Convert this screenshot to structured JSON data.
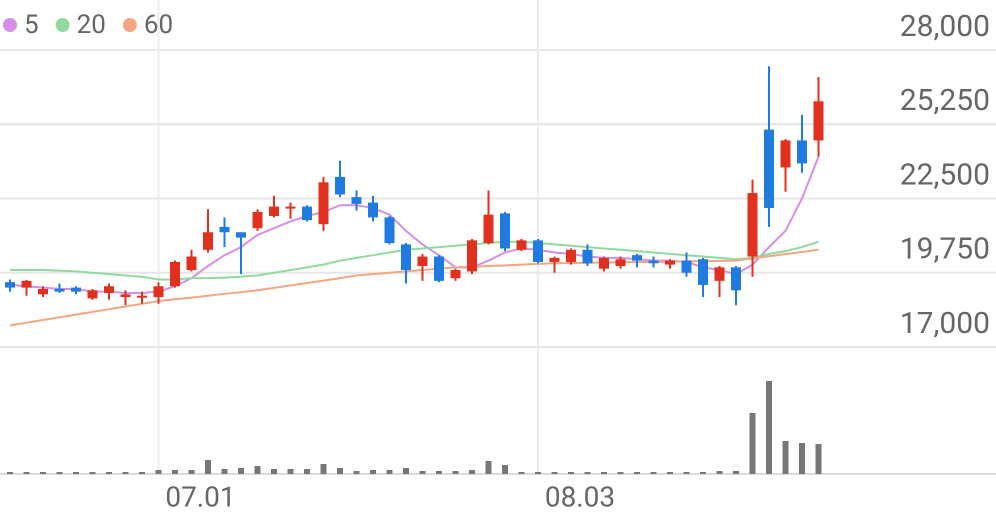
{
  "chart_data": {
    "type": "candlestick",
    "categories": [
      null,
      null,
      null,
      null,
      null,
      null,
      null,
      null,
      null,
      "07.01",
      null,
      null,
      null,
      null,
      null,
      null,
      null,
      null,
      null,
      null,
      null,
      null,
      null,
      null,
      null,
      null,
      null,
      null,
      null,
      null,
      null,
      null,
      "08.03",
      null,
      null,
      null,
      null,
      null,
      null,
      null,
      null,
      null,
      null,
      null,
      null,
      null,
      null,
      null,
      null,
      null
    ],
    "open": [
      19400,
      19200,
      18950,
      19150,
      19200,
      18800,
      19000,
      18850,
      18850,
      18850,
      19250,
      19850,
      20600,
      21450,
      21250,
      21400,
      21850,
      22150,
      22200,
      21550,
      23300,
      22550,
      22350,
      21800,
      20800,
      20000,
      20350,
      19550,
      19800,
      20850,
      21950,
      20600,
      20950,
      20150,
      20150,
      20600,
      19900,
      20000,
      20400,
      20200,
      20050,
      20200,
      20250,
      19450,
      19950,
      20350,
      25050,
      23650,
      24650,
      24650
    ],
    "high": [
      19500,
      19480,
      19250,
      19350,
      19250,
      19150,
      19350,
      19100,
      19050,
      19400,
      20200,
      20600,
      22100,
      21800,
      21250,
      22100,
      22600,
      22350,
      22250,
      23300,
      23900,
      22800,
      22600,
      21850,
      20850,
      20450,
      20400,
      19900,
      21000,
      22800,
      22000,
      21000,
      21000,
      20350,
      20650,
      20800,
      20350,
      20350,
      20450,
      20350,
      20250,
      20500,
      20300,
      20000,
      20000,
      23200,
      27400,
      24700,
      25600,
      27000
    ],
    "low": [
      19050,
      18900,
      18850,
      19000,
      18950,
      18750,
      18750,
      18550,
      18600,
      18600,
      19200,
      19800,
      20500,
      20700,
      19700,
      21300,
      21800,
      21750,
      21650,
      21300,
      22550,
      22050,
      21650,
      20800,
      19350,
      19450,
      19400,
      19450,
      19700,
      20800,
      20550,
      20550,
      20100,
      19750,
      20050,
      20000,
      19800,
      19900,
      19950,
      19950,
      19900,
      19600,
      18850,
      18850,
      18550,
      19600,
      21450,
      22750,
      23450,
      24050
    ],
    "close": [
      19200,
      19450,
      19150,
      19050,
      19050,
      19100,
      19250,
      18950,
      18900,
      19250,
      20150,
      20350,
      21250,
      21250,
      21050,
      22000,
      22200,
      22200,
      21700,
      23100,
      22650,
      22300,
      21800,
      20850,
      19850,
      20350,
      19450,
      19850,
      20950,
      21900,
      20650,
      20950,
      20150,
      20300,
      20600,
      20100,
      20300,
      20250,
      20200,
      20100,
      20200,
      19750,
      19300,
      19950,
      19100,
      22700,
      22150,
      24650,
      23800,
      26100
    ],
    "up_color": "#e0301e",
    "down_color": "#1f7be0",
    "series": [
      {
        "name": "5",
        "color": "#d68ee6",
        "values": [
          19300,
          19250,
          19200,
          19150,
          19150,
          19050,
          19050,
          19000,
          19000,
          19050,
          19250,
          19550,
          20000,
          20400,
          20700,
          21150,
          21400,
          21650,
          21850,
          22000,
          22250,
          22250,
          22150,
          21900,
          21300,
          20800,
          20400,
          19950,
          19950,
          20200,
          20500,
          20650,
          20600,
          20500,
          20450,
          20350,
          20300,
          20300,
          20250,
          20200,
          20200,
          20150,
          19950,
          19850,
          19700,
          20050,
          20700,
          21300,
          22500,
          24050
        ]
      },
      {
        "name": "20",
        "color": "#8fdb9f",
        "values": [
          19850,
          19850,
          19850,
          19830,
          19800,
          19750,
          19700,
          19650,
          19600,
          19500,
          19500,
          19550,
          19550,
          19570,
          19600,
          19650,
          19750,
          19850,
          19950,
          20050,
          20200,
          20300,
          20400,
          20500,
          20600,
          20650,
          20700,
          20750,
          20800,
          20850,
          20900,
          20900,
          20850,
          20800,
          20750,
          20700,
          20650,
          20600,
          20550,
          20500,
          20450,
          20400,
          20350,
          20300,
          20250,
          20300,
          20450,
          20550,
          20700,
          20900
        ]
      },
      {
        "name": "60",
        "color": "#f4a582",
        "values": [
          17800,
          17900,
          18000,
          18100,
          18200,
          18300,
          18400,
          18500,
          18600,
          18700,
          18770,
          18830,
          18900,
          18970,
          19030,
          19100,
          19190,
          19280,
          19370,
          19460,
          19550,
          19650,
          19700,
          19750,
          19800,
          19850,
          19900,
          19950,
          19970,
          20000,
          20020,
          20050,
          20080,
          20100,
          20110,
          20120,
          20130,
          20140,
          20150,
          20150,
          20160,
          20170,
          20180,
          20190,
          20200,
          20280,
          20360,
          20440,
          20520,
          20600
        ]
      }
    ],
    "volume": {
      "color": "#777777",
      "values": [
        2,
        2,
        2,
        2,
        2,
        2,
        2,
        2,
        2,
        4,
        4,
        4,
        14,
        5,
        6,
        8,
        5,
        5,
        5,
        10,
        6,
        3,
        4,
        4,
        6,
        3,
        3,
        3,
        4,
        13,
        9,
        2,
        2,
        2,
        2,
        2,
        2,
        2,
        2,
        2,
        2,
        2,
        2,
        3,
        3,
        61,
        93,
        33,
        31,
        30
      ]
    },
    "volume_ylim": [
      0,
      100
    ],
    "ylim": [
      17000,
      28000
    ],
    "yticks": [
      {
        "value": 17000,
        "label": "17,000"
      },
      {
        "value": 19750,
        "label": "19,750"
      },
      {
        "value": 22500,
        "label": "22,500"
      },
      {
        "value": 25250,
        "label": "25,250"
      },
      {
        "value": 28000,
        "label": "28,000"
      }
    ],
    "grid": true,
    "legend": "top-left"
  }
}
